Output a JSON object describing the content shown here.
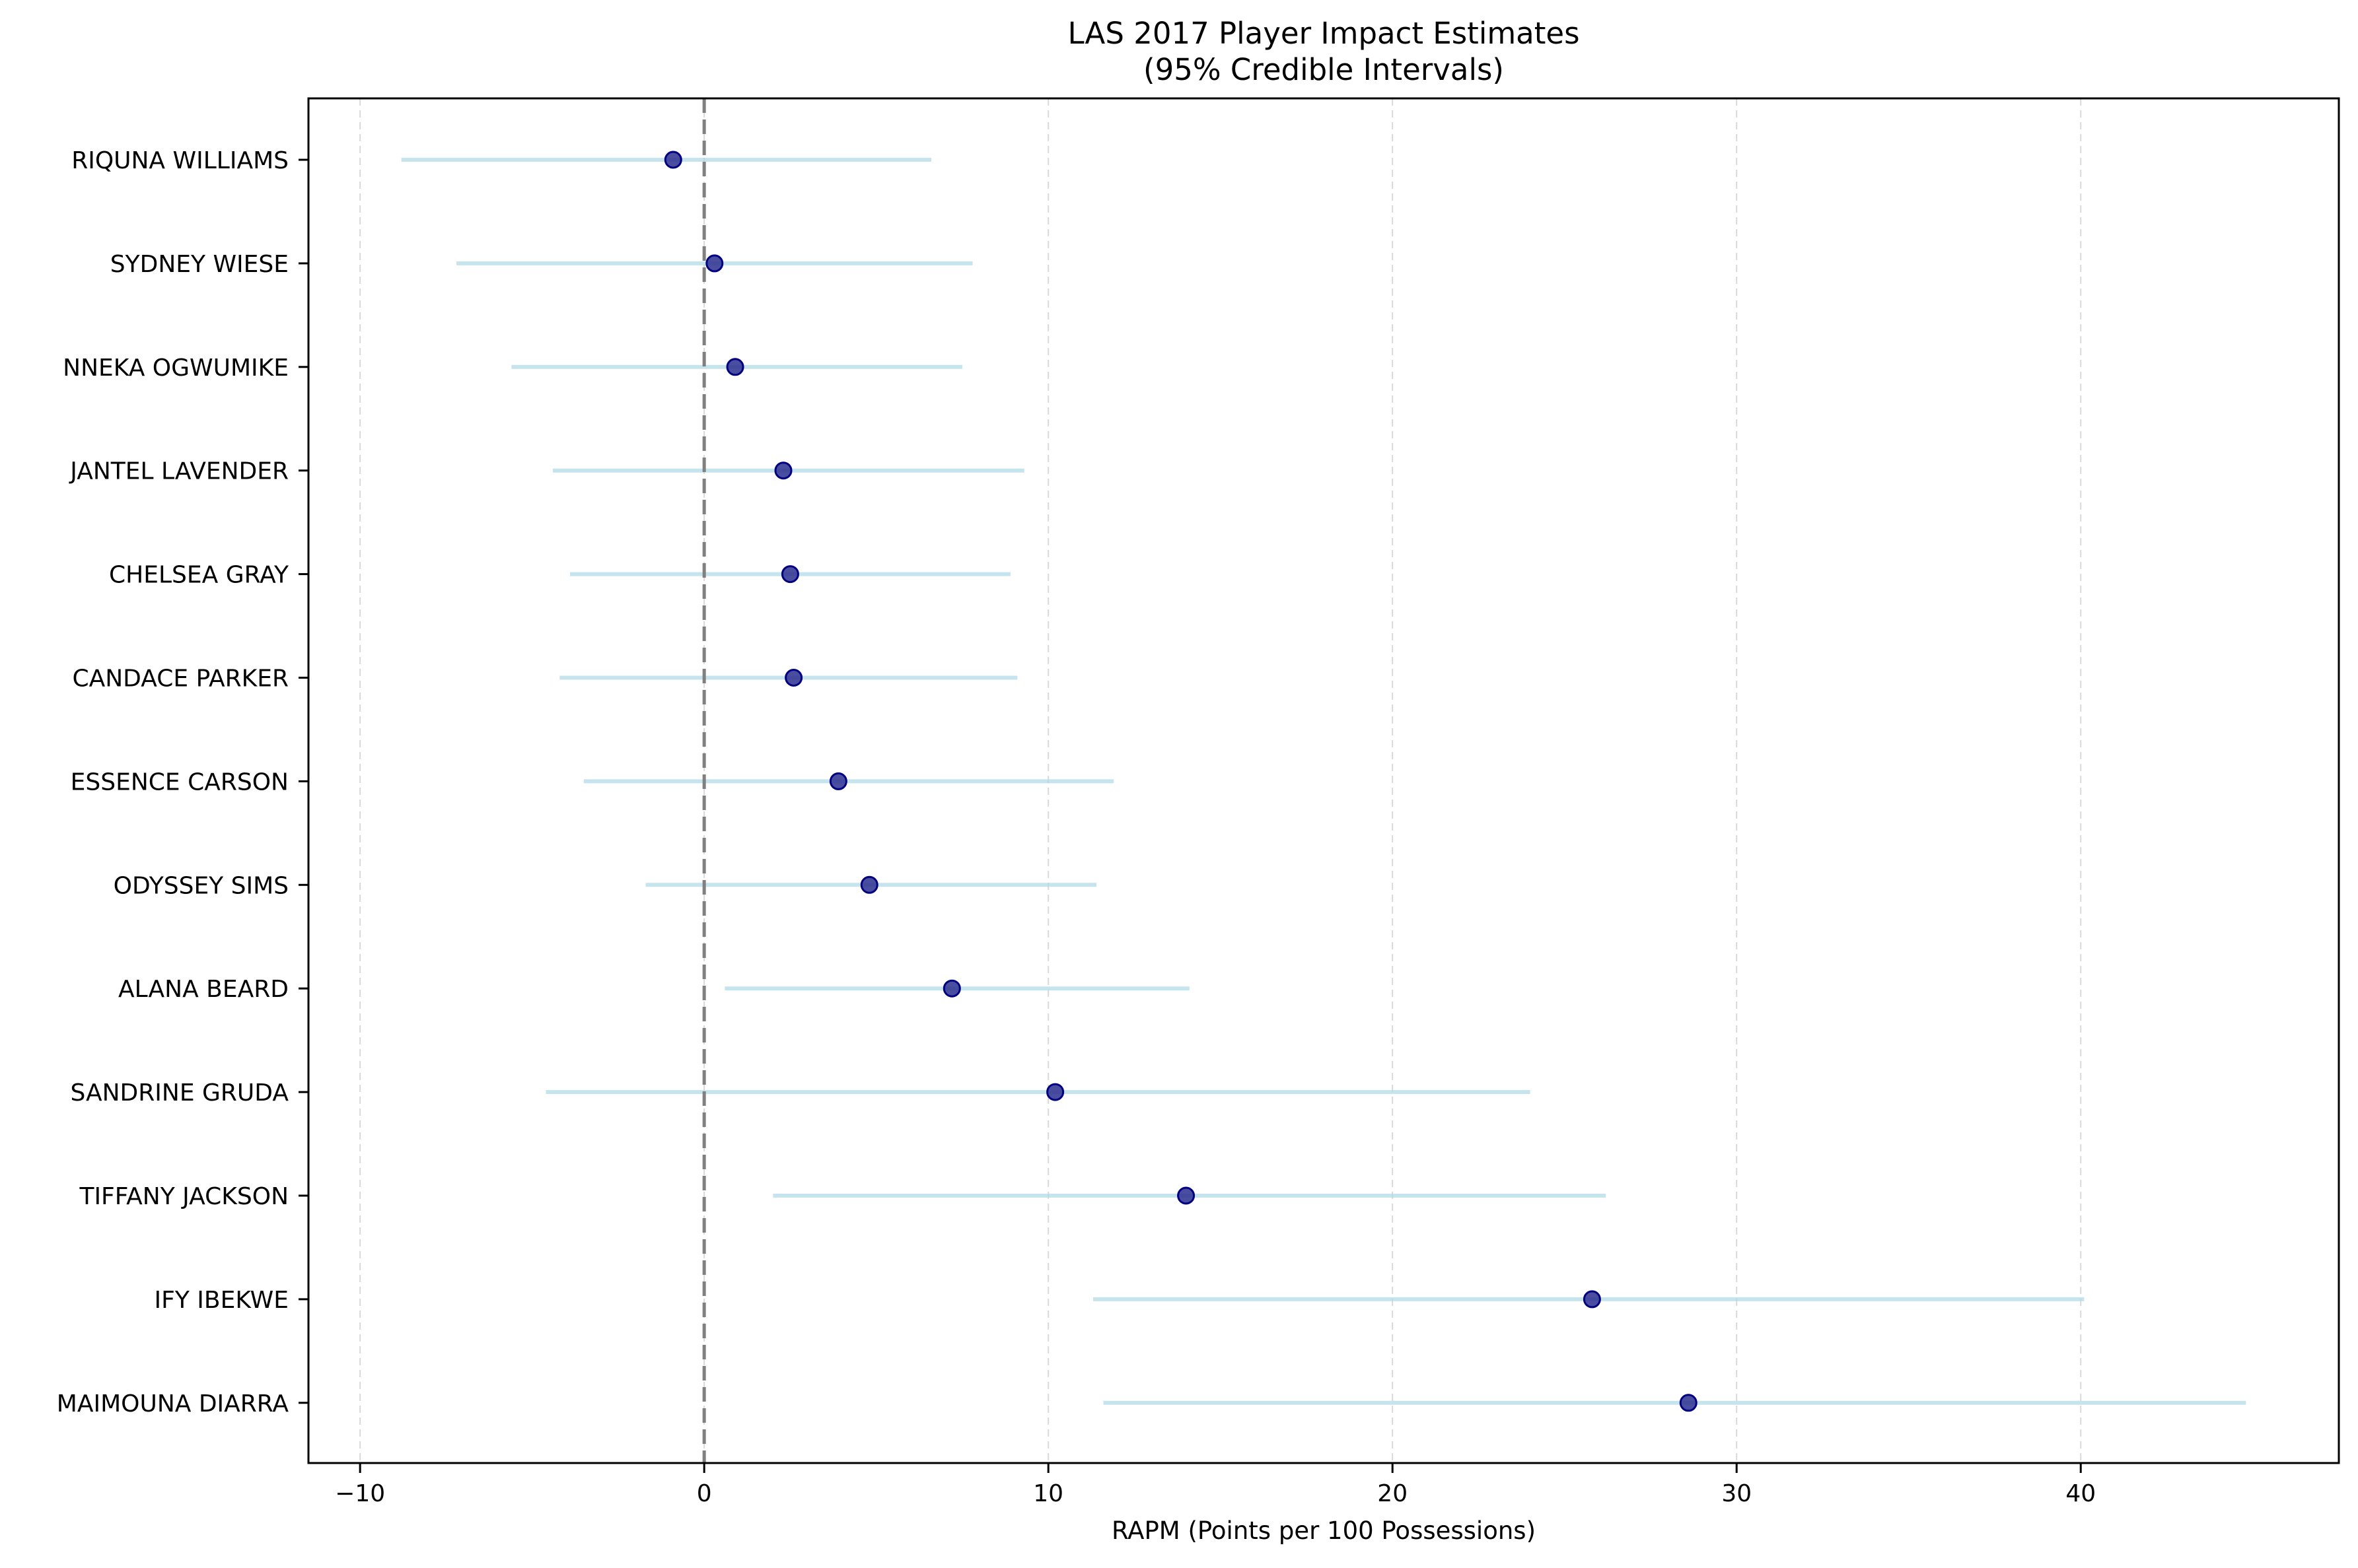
{
  "chart_data": {
    "type": "forest",
    "title": "LAS 2017 Player Impact Estimates",
    "subtitle": "(95% Credible Intervals)",
    "xlabel": "RAPM (Points per 100 Possessions)",
    "ylabel": "",
    "xlim": [
      -11.5,
      47.5
    ],
    "x_ticks": [
      -10,
      0,
      10,
      20,
      30,
      40
    ],
    "x_tick_labels": [
      "−10",
      "0",
      "10",
      "20",
      "30",
      "40"
    ],
    "grid": "x-dashed",
    "reference_line": 0,
    "colors": {
      "interval": "#add8e6",
      "point_fill": "#2b2f8f",
      "point_edge": "#000080",
      "reference": "#808080",
      "grid": "#d9d9d9"
    },
    "players": [
      {
        "name": "RIQUNA WILLIAMS",
        "estimate": -0.9,
        "lower": -8.8,
        "upper": 6.6
      },
      {
        "name": "SYDNEY WIESE",
        "estimate": 0.3,
        "lower": -7.2,
        "upper": 7.8
      },
      {
        "name": "NNEKA OGWUMIKE",
        "estimate": 0.9,
        "lower": -5.6,
        "upper": 7.5
      },
      {
        "name": "JANTEL LAVENDER",
        "estimate": 2.3,
        "lower": -4.4,
        "upper": 9.3
      },
      {
        "name": "CHELSEA GRAY",
        "estimate": 2.5,
        "lower": -3.9,
        "upper": 8.9
      },
      {
        "name": "CANDACE PARKER",
        "estimate": 2.6,
        "lower": -4.2,
        "upper": 9.1
      },
      {
        "name": "ESSENCE CARSON",
        "estimate": 3.9,
        "lower": -3.5,
        "upper": 11.9
      },
      {
        "name": "ODYSSEY SIMS",
        "estimate": 4.8,
        "lower": -1.7,
        "upper": 11.4
      },
      {
        "name": "ALANA BEARD",
        "estimate": 7.2,
        "lower": 0.6,
        "upper": 14.1
      },
      {
        "name": "SANDRINE GRUDA",
        "estimate": 10.2,
        "lower": -4.6,
        "upper": 24.0
      },
      {
        "name": "TIFFANY JACKSON",
        "estimate": 14.0,
        "lower": 2.0,
        "upper": 26.2
      },
      {
        "name": "IFY IBEKWE",
        "estimate": 25.8,
        "lower": 11.3,
        "upper": 40.1
      },
      {
        "name": "MAIMOUNA DIARRA",
        "estimate": 28.6,
        "lower": 11.6,
        "upper": 44.8
      }
    ]
  }
}
